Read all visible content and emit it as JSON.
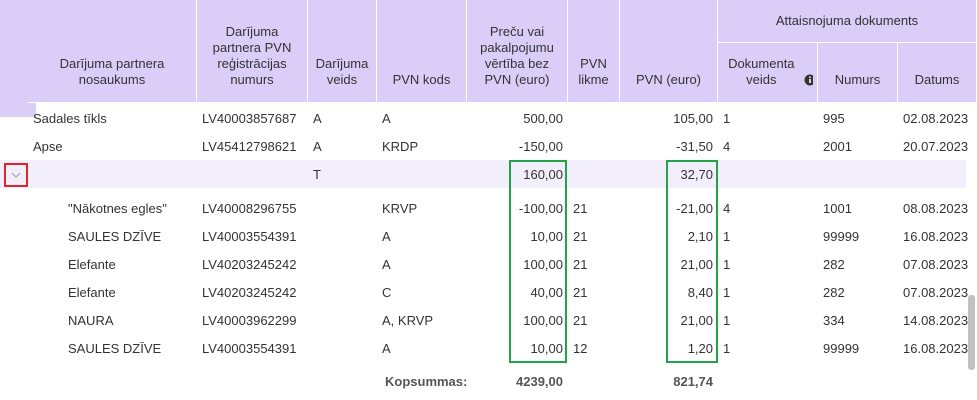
{
  "header": {
    "group": "Attaisnojuma dokuments",
    "columns": [
      "Darījuma partnera nosaukums",
      "Darījuma partnera PVN reģistrācijas numurs",
      "Darījuma veids",
      "PVN kods",
      "Preču vai pakalpojumu vērtība bez PVN (euro)",
      "PVN likme",
      "PVN (euro)",
      "Dokumenta veids",
      "Numurs",
      "Datums"
    ]
  },
  "table": {
    "rows": [
      [
        "Sadales tīkls",
        "LV40003857687",
        "A",
        "A",
        "500,00",
        null,
        "105,00",
        "1",
        "995",
        "02.08.2023"
      ],
      [
        "Apse",
        "LV45412798621",
        "A",
        "KRDP",
        "-150,00",
        null,
        "-31,50",
        "4",
        "2001",
        "20.07.2023"
      ],
      [
        null,
        null,
        "T",
        null,
        "160,00",
        null,
        "32,70",
        null,
        null,
        null
      ],
      [
        "\"Nākotnes egles\"",
        "LV40008296755",
        null,
        "KRVP",
        "-100,00",
        "21",
        "-21,00",
        "4",
        "1001",
        "08.08.2023"
      ],
      [
        "SAULES DZĪVE",
        "LV40003554391",
        null,
        "A",
        "10,00",
        "21",
        "2,10",
        "1",
        "99999",
        "16.08.2023"
      ],
      [
        "Elefante",
        "LV40203245242",
        null,
        "A",
        "100,00",
        "21",
        "21,00",
        "1",
        "282",
        "07.08.2023"
      ],
      [
        "Elefante",
        "LV40203245242",
        null,
        "C",
        "40,00",
        "21",
        "8,40",
        "1",
        "282",
        "07.08.2023"
      ],
      [
        "NAURA",
        "LV40003962299",
        null,
        "A, KRVP",
        "100,00",
        "21",
        "21,00",
        "1",
        "334",
        "14.08.2023"
      ],
      [
        "SAULES DZĪVE",
        "LV40003554391",
        null,
        "A",
        "10,00",
        "12",
        "1,20",
        "1",
        "99999",
        "16.08.2023"
      ]
    ],
    "totals": {
      "label": "Kopsummas:",
      "value": "4239,00",
      "vat": "821,74"
    }
  }
}
